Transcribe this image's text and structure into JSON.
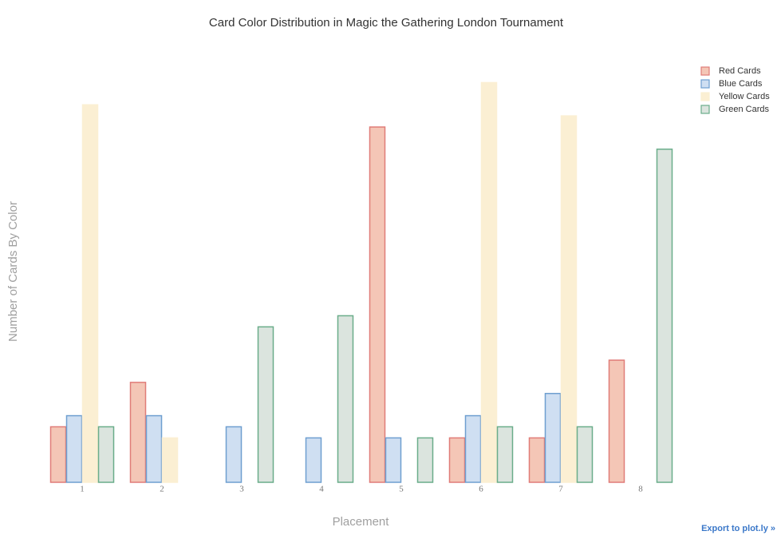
{
  "chart_data": {
    "type": "bar",
    "title": "Card Color Distribution in Magic the Gathering London Tournament",
    "x_label": "Placement",
    "y_label": "Number of Cards By Color",
    "categories": [
      "1",
      "2",
      "3",
      "4",
      "5",
      "6",
      "7",
      "8"
    ],
    "series": [
      {
        "name": "Red Cards",
        "color": "#f4c6b6",
        "border_color": "#e07c78",
        "values": [
          5,
          9,
          0,
          0,
          32,
          4,
          4,
          11
        ]
      },
      {
        "name": "Blue Cards",
        "color": "#cfdff2",
        "border_color": "#6f9fd0",
        "values": [
          6,
          6,
          5,
          4,
          4,
          6,
          8,
          0
        ]
      },
      {
        "name": "Yellow Cards",
        "color": "#fbefd3",
        "border_color": "#fbefd3",
        "values": [
          34,
          4,
          0,
          0,
          0,
          36,
          33,
          0
        ]
      },
      {
        "name": "Green Cards",
        "color": "#dbe4de",
        "border_color": "#6aad8a",
        "values": [
          5,
          0,
          14,
          15,
          4,
          5,
          5,
          30
        ]
      }
    ],
    "ylim": [
      0,
      37.9
    ],
    "legend": "top-right"
  },
  "export_link": "Export to plot.ly »"
}
